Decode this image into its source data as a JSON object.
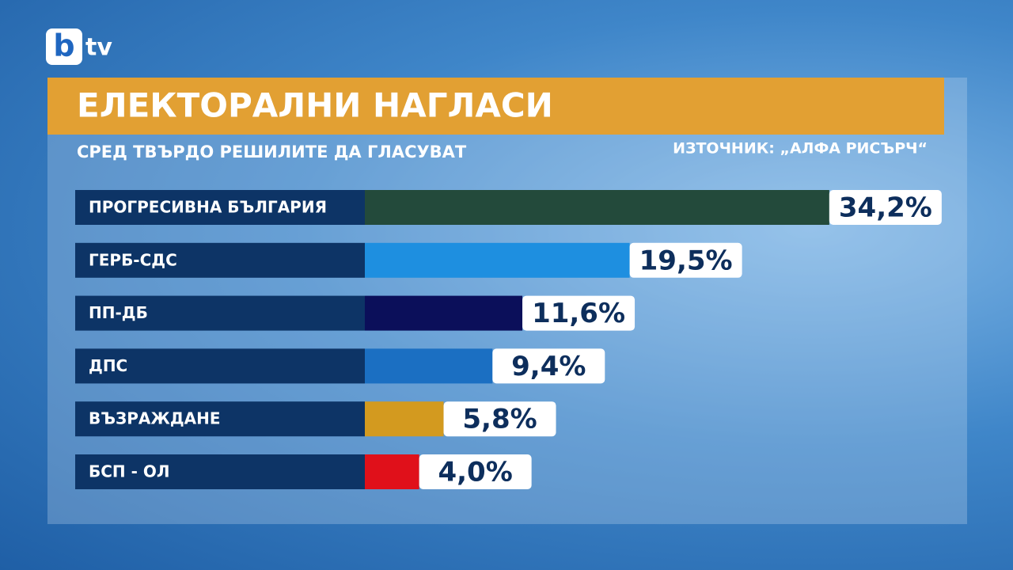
{
  "logo": {
    "mark": "b",
    "text": "tv"
  },
  "chart_data": {
    "type": "bar",
    "orientation": "horizontal",
    "title": "ЕЛЕКТОРАЛНИ НАГЛАСИ",
    "subtitle": "СРЕД ТВЪРДО РЕШИЛИТЕ ДА ГЛАСУВАТ",
    "source": "ИЗТОЧНИК: „АЛФА РИСЪРЧ“",
    "categories": [
      "ПРОГРЕСИВНА БЪЛГАРИЯ",
      "ГЕРБ-СДС",
      "ПП-ДБ",
      "ДПС",
      "ВЪЗРАЖДАНЕ",
      "БСП - ОЛ"
    ],
    "values": [
      34.2,
      19.5,
      11.6,
      9.4,
      5.8,
      4.0
    ],
    "value_labels": [
      "34,2%",
      "19,5%",
      "11,6%",
      "9,4%",
      "5,8%",
      "4,0%"
    ],
    "colors": [
      "#234a3b",
      "#1e8fe0",
      "#0b0f5a",
      "#1b6fc2",
      "#d39a1f",
      "#e0101a"
    ]
  }
}
